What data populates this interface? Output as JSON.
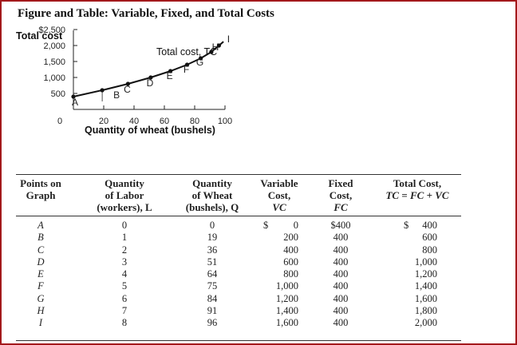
{
  "figure_title": "Figure and Table: Variable, Fixed, and Total Costs",
  "chart_data": {
    "type": "line",
    "title": "Figure and Table: Variable, Fixed, and Total Costs",
    "ylabel": "Total cost",
    "xlabel": "Quantity of wheat (bushels)",
    "x_ticks": [
      "20",
      "40",
      "60",
      "80",
      "100"
    ],
    "y_ticks": [
      "$2,500",
      "2,000",
      "1,500",
      "1,000",
      "500"
    ],
    "origin_label": "0",
    "xlim": [
      0,
      100
    ],
    "ylim": [
      0,
      2500
    ],
    "series": [
      {
        "name": "Total cost, TC",
        "color": "#111111",
        "points": [
          {
            "label": "A",
            "x": 0,
            "y": 400
          },
          {
            "label": "B",
            "x": 19,
            "y": 600
          },
          {
            "label": "C",
            "x": 36,
            "y": 800
          },
          {
            "label": "D",
            "x": 51,
            "y": 1000
          },
          {
            "label": "E",
            "x": 64,
            "y": 1200
          },
          {
            "label": "F",
            "x": 75,
            "y": 1400
          },
          {
            "label": "G",
            "x": 84,
            "y": 1600
          },
          {
            "label": "H",
            "x": 91,
            "y": 1800
          },
          {
            "label": "I",
            "x": 96,
            "y": 2000
          }
        ]
      }
    ]
  },
  "table": {
    "headers": [
      {
        "line1": "",
        "line2": "Points on",
        "line3": "Graph",
        "italic": false
      },
      {
        "line1": "Quantity",
        "line2": "of Labor",
        "line3": "(workers), L",
        "italic": false
      },
      {
        "line1": "Quantity",
        "line2": "of Wheat",
        "line3": "(bushels), Q",
        "italic": false
      },
      {
        "line1": "Variable",
        "line2": "Cost,",
        "line3": "VC",
        "italic": true
      },
      {
        "line1": "Fixed",
        "line2": "Cost,",
        "line3": "FC",
        "italic": true
      },
      {
        "line1": "",
        "line2": "Total Cost,",
        "line3": "TC = FC + VC",
        "italic": true
      }
    ],
    "columns": {
      "points": [
        "A",
        "B",
        "C",
        "D",
        "E",
        "F",
        "G",
        "H",
        "I"
      ],
      "labor": [
        "0",
        "1",
        "2",
        "3",
        "4",
        "5",
        "6",
        "7",
        "8"
      ],
      "wheat": [
        "0",
        "19",
        "36",
        "51",
        "64",
        "75",
        "84",
        "91",
        "96"
      ],
      "vc": [
        "0",
        "200",
        "400",
        "600",
        "800",
        "1,000",
        "1,200",
        "1,400",
        "1,600"
      ],
      "fc": [
        "$400",
        "400",
        "400",
        "400",
        "400",
        "400",
        "400",
        "400",
        "400"
      ],
      "tc": [
        "400",
        "600",
        "800",
        "1,000",
        "1,200",
        "1,400",
        "1,600",
        "1,800",
        "2,000"
      ]
    },
    "currency_symbol": "$"
  }
}
